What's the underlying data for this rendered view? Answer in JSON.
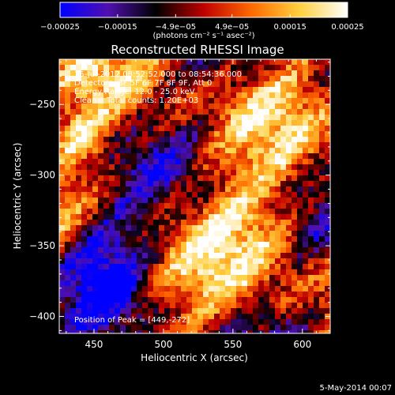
{
  "chart_data": {
    "type": "heatmap",
    "title": "Reconstructed RHESSI Image",
    "xlabel": "Heliocentric X (arcsec)",
    "ylabel": "Heliocentric Y (arcsec)",
    "xlim": [
      425,
      620
    ],
    "ylim": [
      -412,
      -218
    ],
    "x_ticks": [
      450,
      500,
      550,
      600
    ],
    "y_ticks": [
      -250,
      -300,
      -350,
      -400
    ],
    "x_tick_labels": [
      "450",
      "500",
      "550",
      "600"
    ],
    "y_tick_labels": [
      "−250",
      "−300",
      "−350",
      "−400"
    ],
    "colorbar": {
      "range": [
        -0.00025,
        0.00025
      ],
      "ticks": [
        -0.00025,
        -0.00015,
        -4.9e-05,
        4.9e-05,
        0.00015,
        0.00025
      ],
      "tick_labels": [
        "−0.00025",
        "−0.00015",
        "−4.9e−05",
        "4.9e−05",
        "0.00015",
        "0.00025"
      ],
      "unit_label": "(photons cm⁻² s⁻¹ asec⁻²)",
      "colors": [
        "#0000ff",
        "#5010b0",
        "#000000",
        "#c00000",
        "#ff6a00",
        "#ffd040",
        "#ffffff"
      ]
    },
    "annotations": [
      "15-Jul-2012 08:52:52.000 to 08:54:36.000",
      "Detectors: 3F 5F 6F 7F 8F 9F, Att 0",
      "Energy Range: 12.0 - 25.0 keV",
      "Clean    Total counts: 1.20E+03",
      "Position of Peak = [449,-272]"
    ],
    "peak": {
      "x": 449,
      "y": -272
    },
    "grid": false
  },
  "footer": {
    "date": "5-May-2014 00:07"
  }
}
